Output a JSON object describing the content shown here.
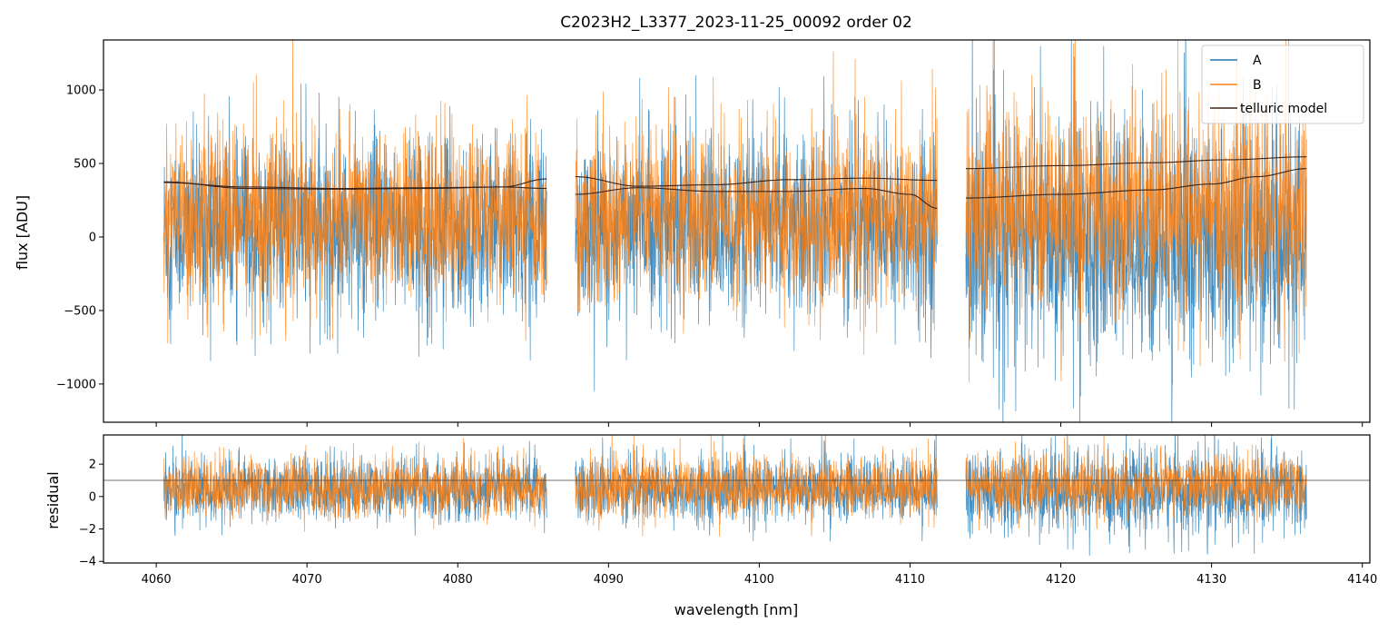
{
  "chart_data": {
    "type": "line",
    "title": "C2023H2_L3377_2023-11-25_00092  order 02",
    "xlabel": "wavelength [nm]",
    "xlim": [
      4056.5,
      4140.5
    ],
    "xticks": [
      4060,
      4070,
      4080,
      4090,
      4100,
      4110,
      4120,
      4130,
      4140
    ],
    "segments_nm": [
      [
        4060.5,
        4085.9
      ],
      [
        4087.8,
        4111.8
      ],
      [
        4113.7,
        4136.3
      ]
    ],
    "colors": {
      "A": "#1f77b4",
      "B": "#ff7f0e",
      "telluric": "#3b2418"
    },
    "legend": {
      "location": "top-right",
      "entries": [
        {
          "label": "A",
          "color": "#1f77b4"
        },
        {
          "label": "B",
          "color": "#ff7f0e"
        },
        {
          "label": "telluric model",
          "color": "#3b2418"
        }
      ]
    },
    "panels": [
      {
        "name": "flux",
        "ylabel": "flux [ADU]",
        "ylim": [
          -1260,
          1340
        ],
        "yticks": [
          -1000,
          -500,
          0,
          500,
          1000
        ],
        "ytick_labels": [
          "−1000",
          "−500",
          "0",
          "500",
          "1000"
        ],
        "series": [
          {
            "name": "A",
            "center": 80,
            "noise": 300,
            "seg_center": [
              60,
              80,
              -40
            ]
          },
          {
            "name": "B",
            "center": 120,
            "noise": 280,
            "seg_center": [
              140,
              140,
              200
            ]
          }
        ],
        "telluric_models": [
          {
            "x": [
              4060.5,
              4066,
              4072,
              4078,
              4083,
              4085.9
            ],
            "y": [
              375,
              330,
              325,
              330,
              340,
              395
            ]
          },
          {
            "x": [
              4060.5,
              4066,
              4072,
              4078,
              4083,
              4085.9
            ],
            "y": [
              370,
              340,
              330,
              335,
              340,
              330
            ]
          },
          {
            "x": [
              4087.8,
              4092,
              4097,
              4102,
              4107,
              4111.8
            ],
            "y": [
              410,
              345,
              355,
              390,
              400,
              385
            ]
          },
          {
            "x": [
              4087.8,
              4092,
              4097,
              4102,
              4107,
              4110,
              4111.8
            ],
            "y": [
              290,
              335,
              310,
              310,
              330,
              290,
              195
            ]
          },
          {
            "x": [
              4113.7,
              4120,
              4126,
              4131,
              4136.3
            ],
            "y": [
              465,
              485,
              505,
              525,
              545
            ]
          },
          {
            "x": [
              4113.7,
              4120,
              4126,
              4130,
              4133,
              4136.3
            ],
            "y": [
              265,
              290,
              320,
              360,
              410,
              465
            ]
          }
        ]
      },
      {
        "name": "residual",
        "ylabel": "residual",
        "ylim": [
          -4.1,
          3.8
        ],
        "yticks": [
          -4,
          -2,
          0,
          2
        ],
        "ytick_labels": [
          "−4",
          "−2",
          "0",
          "2"
        ],
        "reference_line": 1.0,
        "series": [
          {
            "name": "A",
            "center": 0.45,
            "noise": 0.95,
            "seg_center": [
              0.45,
              0.45,
              0.3
            ]
          },
          {
            "name": "B",
            "center": 0.55,
            "noise": 0.9,
            "seg_center": [
              0.55,
              0.6,
              0.7
            ]
          }
        ]
      }
    ]
  }
}
